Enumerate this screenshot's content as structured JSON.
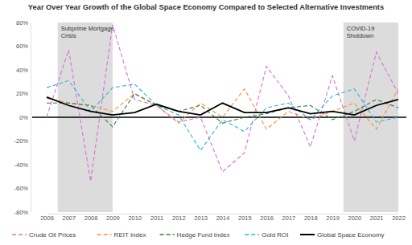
{
  "chart_data": {
    "type": "line",
    "title": "Year Over Year Growth of the Global Space Economy Compared to Selected Alternative Investments",
    "categories": [
      "2006",
      "2007",
      "2008",
      "2009",
      "2010",
      "2011",
      "2012",
      "2013",
      "2014",
      "2015",
      "2016",
      "2017",
      "2018",
      "2019",
      "2020",
      "2021",
      "2022"
    ],
    "series": [
      {
        "name": "Crude Oil Prices",
        "color": "#d670d6",
        "line_style": "dashed",
        "values": [
          0,
          57,
          -54,
          78,
          15,
          10,
          -4,
          0,
          -46,
          -30,
          43,
          18,
          -25,
          35,
          -20,
          55,
          20
        ]
      },
      {
        "name": "REIT Index",
        "color": "#f0913a",
        "line_style": "dashed",
        "values": [
          16,
          12,
          10,
          5,
          20,
          10,
          -5,
          12,
          0,
          24,
          -10,
          5,
          -2,
          5,
          12,
          -10,
          24
        ]
      },
      {
        "name": "Hedge Fund Index",
        "color": "#3a7a3a",
        "line_style": "dashed",
        "values": [
          12,
          12,
          10,
          -8,
          20,
          10,
          5,
          10,
          -5,
          0,
          3,
          8,
          10,
          -2,
          5,
          15,
          8
        ]
      },
      {
        "name": "Gold ROI",
        "color": "#2bb5d8",
        "line_style": "dashed",
        "values": [
          25,
          31,
          5,
          25,
          28,
          10,
          2,
          -28,
          -2,
          -12,
          8,
          12,
          -2,
          18,
          24,
          -4,
          0
        ]
      },
      {
        "name": "Global Space Economy",
        "color": "#000000",
        "line_style": "solid",
        "values": [
          17,
          10,
          5,
          2,
          4,
          11,
          5,
          2,
          12,
          4,
          4,
          8,
          3,
          5,
          2,
          10,
          15
        ]
      }
    ],
    "ylim": [
      -80,
      80
    ],
    "yticks": [
      {
        "value": -80,
        "label": "-80%"
      },
      {
        "value": -60,
        "label": "-60%"
      },
      {
        "value": -40,
        "label": "-40%"
      },
      {
        "value": -20,
        "label": "-20%"
      },
      {
        "value": 0,
        "label": "0%"
      },
      {
        "value": 20,
        "label": "20%"
      },
      {
        "value": 40,
        "label": "40%"
      },
      {
        "value": 60,
        "label": "60%"
      },
      {
        "value": 80,
        "label": "80%"
      }
    ],
    "annotations": [
      {
        "label_lines": [
          "Subprime Mortgage",
          "Crisis"
        ],
        "start": "2007",
        "end": "2009"
      },
      {
        "label_lines": [
          "COVID-19",
          "Shutdown"
        ],
        "start": "2020",
        "end": "2022"
      }
    ],
    "grid": false,
    "legend": "bottom"
  }
}
